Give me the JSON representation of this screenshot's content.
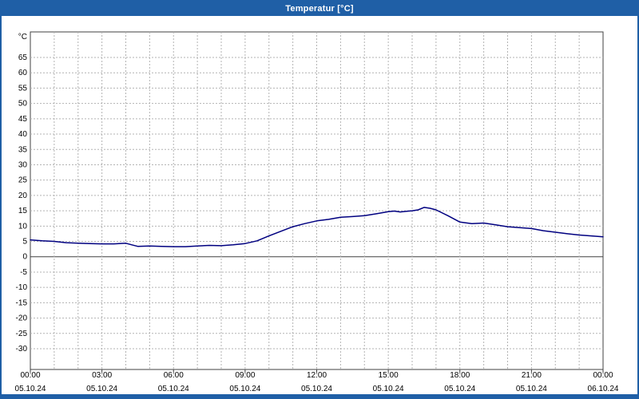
{
  "window": {
    "title": "Temperatur [°C]",
    "accent_color": "#1f5fa6"
  },
  "chart_data": {
    "type": "line",
    "title": "Temperatur [°C]",
    "xlabel": "",
    "ylabel": "°C",
    "ylim": [
      -30,
      65
    ],
    "ytick_step": 5,
    "xlim_hours": [
      0,
      24
    ],
    "grid": true,
    "gridline_style": "dashed",
    "legend": "none",
    "line_color": "#000080",
    "grid_color": "#b3b3b3",
    "axis_color": "#404040",
    "xticks": [
      {
        "hour": 0,
        "time": "00:00",
        "date": "05.10.24"
      },
      {
        "hour": 3,
        "time": "03:00",
        "date": "05.10.24"
      },
      {
        "hour": 6,
        "time": "06:00",
        "date": "05.10.24"
      },
      {
        "hour": 9,
        "time": "09:00",
        "date": "05.10.24"
      },
      {
        "hour": 12,
        "time": "12:00",
        "date": "05.10.24"
      },
      {
        "hour": 15,
        "time": "15:00",
        "date": "05.10.24"
      },
      {
        "hour": 18,
        "time": "18:00",
        "date": "05.10.24"
      },
      {
        "hour": 21,
        "time": "21:00",
        "date": "05.10.24"
      },
      {
        "hour": 24,
        "time": "00:00",
        "date": "06.10.24"
      }
    ],
    "series": [
      {
        "name": "Temperatur",
        "x": [
          0,
          0.5,
          1,
          1.5,
          2,
          2.5,
          3,
          3.5,
          4,
          4.25,
          4.5,
          5,
          5.5,
          6,
          6.5,
          7,
          7.5,
          8,
          8.5,
          9,
          9.5,
          10,
          10.5,
          11,
          11.5,
          12,
          12.5,
          13,
          13.5,
          14,
          14.5,
          15,
          15.25,
          15.5,
          16,
          16.25,
          16.5,
          16.75,
          17,
          17.5,
          18,
          18.5,
          19,
          19.5,
          20,
          20.5,
          21,
          21.5,
          22,
          22.5,
          23,
          23.5,
          24
        ],
        "y": [
          5.5,
          5.2,
          5.0,
          4.6,
          4.4,
          4.3,
          4.2,
          4.2,
          4.4,
          3.9,
          3.4,
          3.5,
          3.4,
          3.3,
          3.3,
          3.5,
          3.7,
          3.6,
          3.9,
          4.3,
          5.2,
          6.8,
          8.3,
          9.8,
          10.8,
          11.7,
          12.2,
          12.9,
          13.1,
          13.4,
          14.0,
          14.7,
          14.9,
          14.6,
          15.0,
          15.3,
          16.1,
          15.8,
          15.3,
          13.4,
          11.3,
          10.8,
          11.0,
          10.4,
          9.8,
          9.5,
          9.2,
          8.5,
          8.0,
          7.5,
          7.1,
          6.8,
          6.5
        ]
      }
    ]
  }
}
